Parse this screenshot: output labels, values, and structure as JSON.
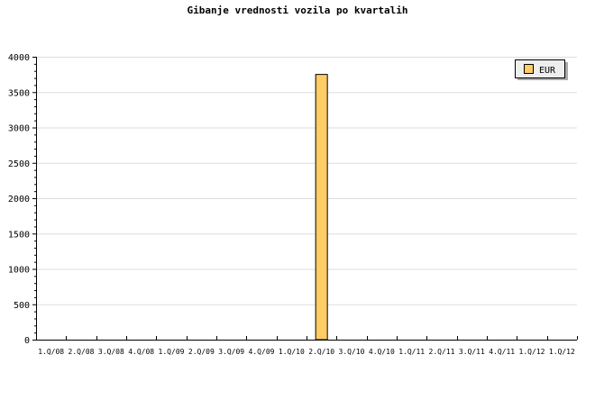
{
  "chart_data": {
    "type": "bar",
    "title": "Gibanje vrednosti vozila po kvartalih",
    "xlabel": "",
    "ylabel": "",
    "ylim": [
      0,
      4000
    ],
    "yticks": [
      0,
      500,
      1000,
      1500,
      2000,
      2500,
      3000,
      3500,
      4000
    ],
    "grid": true,
    "legend_placement": "top-right",
    "categories": [
      "1.Q/08",
      "2.Q/08",
      "3.Q/08",
      "4.Q/08",
      "1.Q/09",
      "2.Q/09",
      "3.Q/09",
      "4.Q/09",
      "1.Q/10",
      "2.Q/10",
      "3.Q/10",
      "4.Q/10",
      "1.Q/11",
      "2.Q/11",
      "3.Q/11",
      "4.Q/11",
      "1.Q/12",
      "1.Q/12"
    ],
    "series": [
      {
        "name": "EUR",
        "color": "#ffcc66",
        "values": [
          0,
          0,
          0,
          0,
          0,
          0,
          0,
          0,
          0,
          3750,
          0,
          0,
          0,
          0,
          0,
          0,
          0,
          0
        ]
      }
    ]
  }
}
